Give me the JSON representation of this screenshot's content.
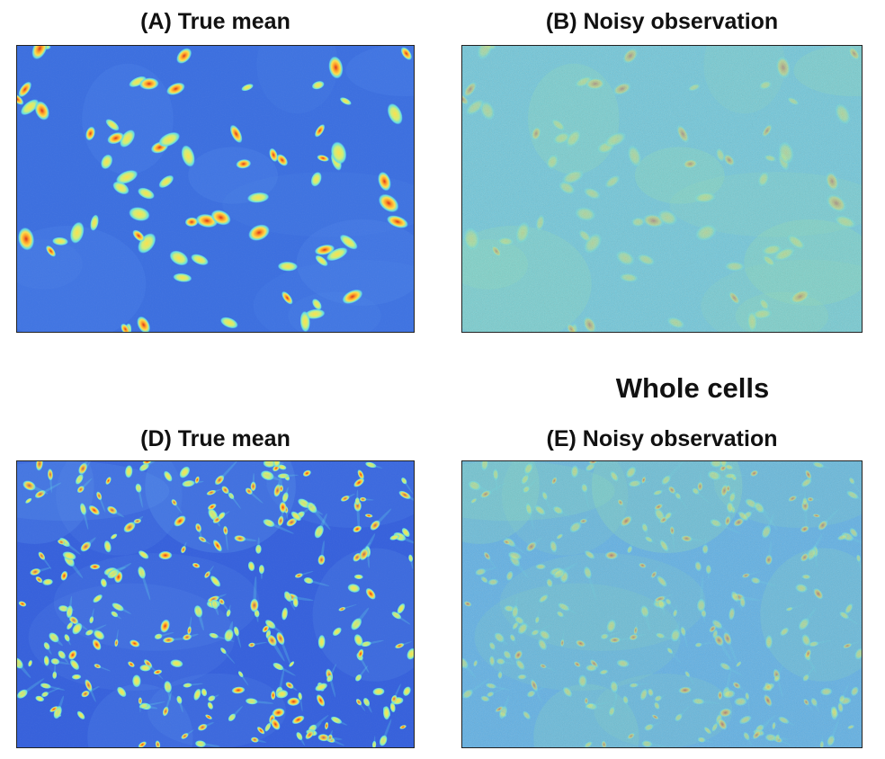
{
  "section": {
    "title": "Whole cells"
  },
  "panels": {
    "a": {
      "title": "(A) True mean"
    },
    "b": {
      "title": "(B) Noisy observation"
    },
    "d": {
      "title": "(D) True mean"
    },
    "e": {
      "title": "(E) Noisy observation"
    }
  },
  "colors": {
    "bg_true": "#3a6ee0",
    "bg_noisy": "#62c0e8",
    "cell_yellow": "#ffe14a",
    "cell_orange": "#ff9a24",
    "cell_red": "#d8321c",
    "cell_cyan": "#62e0e6",
    "noise_green": "#8ee2b0"
  }
}
